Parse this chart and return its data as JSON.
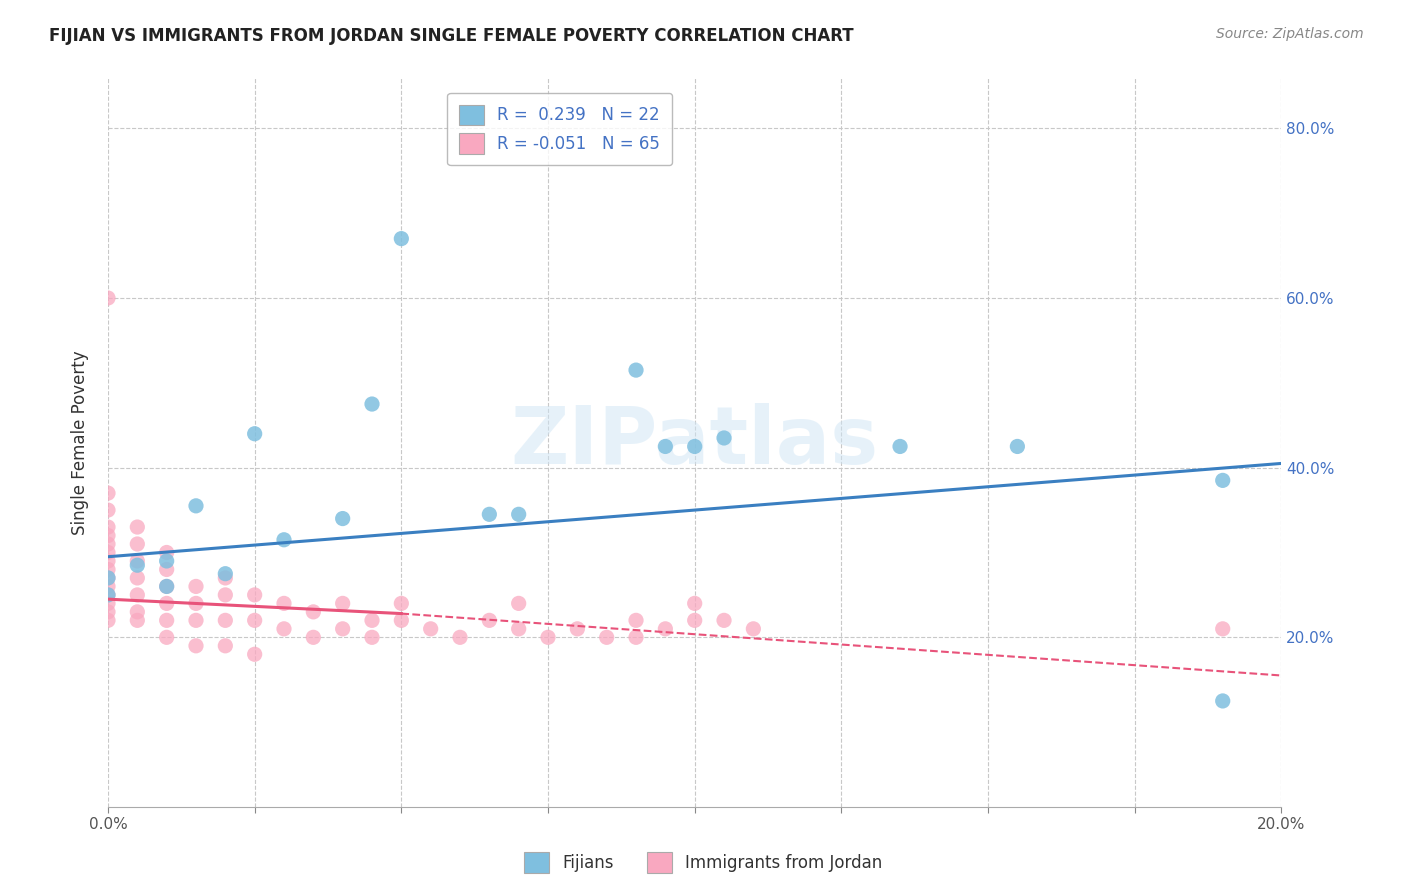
{
  "title": "FIJIAN VS IMMIGRANTS FROM JORDAN SINGLE FEMALE POVERTY CORRELATION CHART",
  "source": "Source: ZipAtlas.com",
  "ylabel_label": "Single Female Poverty",
  "xlim": [
    0.0,
    0.2
  ],
  "ylim": [
    0.0,
    0.86
  ],
  "xtick_positions": [
    0.0,
    0.025,
    0.05,
    0.075,
    0.1,
    0.125,
    0.15,
    0.175,
    0.2
  ],
  "xtick_labels": [
    "0.0%",
    "",
    "",
    "",
    "",
    "",
    "",
    "",
    "20.0%"
  ],
  "ytick_labels": [
    "20.0%",
    "40.0%",
    "60.0%",
    "80.0%"
  ],
  "ytick_vals": [
    0.2,
    0.4,
    0.6,
    0.8
  ],
  "fijian_R": "0.239",
  "fijian_N": "22",
  "jordan_R": "-0.051",
  "jordan_N": "65",
  "fijian_color": "#7fbfdf",
  "jordan_color": "#f9a8c0",
  "fijian_line_color": "#3a7fc1",
  "jordan_line_color": "#e8537a",
  "fijian_scatter_x": [
    0.0,
    0.0,
    0.005,
    0.01,
    0.01,
    0.015,
    0.02,
    0.025,
    0.03,
    0.04,
    0.045,
    0.05,
    0.065,
    0.07,
    0.09,
    0.095,
    0.1,
    0.105,
    0.135,
    0.155,
    0.19,
    0.19
  ],
  "fijian_scatter_y": [
    0.27,
    0.25,
    0.285,
    0.29,
    0.26,
    0.355,
    0.275,
    0.44,
    0.315,
    0.34,
    0.475,
    0.67,
    0.345,
    0.345,
    0.515,
    0.425,
    0.425,
    0.435,
    0.425,
    0.425,
    0.125,
    0.385
  ],
  "jordan_scatter_x": [
    0.0,
    0.0,
    0.0,
    0.0,
    0.0,
    0.0,
    0.0,
    0.0,
    0.0,
    0.0,
    0.0,
    0.0,
    0.0,
    0.0,
    0.0,
    0.005,
    0.005,
    0.005,
    0.005,
    0.005,
    0.005,
    0.005,
    0.01,
    0.01,
    0.01,
    0.01,
    0.01,
    0.01,
    0.015,
    0.015,
    0.015,
    0.015,
    0.02,
    0.02,
    0.02,
    0.02,
    0.025,
    0.025,
    0.025,
    0.03,
    0.03,
    0.035,
    0.035,
    0.04,
    0.04,
    0.045,
    0.045,
    0.05,
    0.05,
    0.055,
    0.06,
    0.065,
    0.07,
    0.07,
    0.075,
    0.08,
    0.085,
    0.09,
    0.09,
    0.095,
    0.1,
    0.1,
    0.105,
    0.11,
    0.19
  ],
  "jordan_scatter_y": [
    0.22,
    0.23,
    0.24,
    0.25,
    0.26,
    0.27,
    0.28,
    0.29,
    0.3,
    0.31,
    0.32,
    0.33,
    0.35,
    0.37,
    0.6,
    0.22,
    0.23,
    0.25,
    0.27,
    0.29,
    0.31,
    0.33,
    0.2,
    0.22,
    0.24,
    0.26,
    0.28,
    0.3,
    0.19,
    0.22,
    0.24,
    0.26,
    0.19,
    0.22,
    0.25,
    0.27,
    0.18,
    0.22,
    0.25,
    0.21,
    0.24,
    0.2,
    0.23,
    0.21,
    0.24,
    0.2,
    0.22,
    0.22,
    0.24,
    0.21,
    0.2,
    0.22,
    0.21,
    0.24,
    0.2,
    0.21,
    0.2,
    0.2,
    0.22,
    0.21,
    0.22,
    0.24,
    0.22,
    0.21,
    0.21
  ],
  "background_color": "#ffffff",
  "grid_color": "#c8c8c8",
  "watermark_text": "ZIPatlas",
  "legend_entry1": "R =  0.239   N = 22",
  "legend_entry2": "R = -0.051   N = 65"
}
